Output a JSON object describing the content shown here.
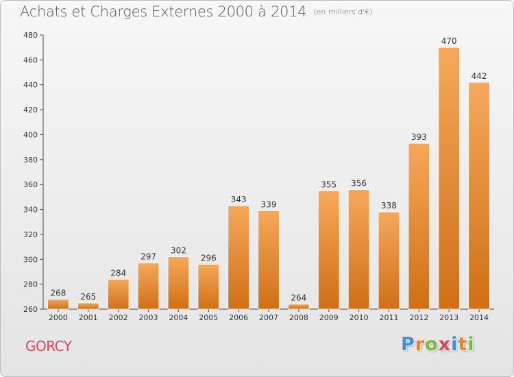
{
  "header": {
    "title": "Achats et Charges Externes 2000 à 2014",
    "unit": "(en milliers d'€)"
  },
  "footer": {
    "city": "GORCY",
    "logo_letters": [
      "P",
      "r",
      "o",
      "x",
      "i",
      "t",
      "i"
    ],
    "logo_colors": [
      "#3d8fd6",
      "#e8822a",
      "#7ab648",
      "#d8455c",
      "#3d8fd6",
      "#e8822a",
      "#7ab648"
    ]
  },
  "chart_data": {
    "type": "bar",
    "categories": [
      "2000",
      "2001",
      "2002",
      "2003",
      "2004",
      "2005",
      "2006",
      "2007",
      "2008",
      "2009",
      "2010",
      "2011",
      "2012",
      "2013",
      "2014"
    ],
    "values": [
      268,
      265,
      284,
      297,
      302,
      296,
      343,
      339,
      264,
      355,
      356,
      338,
      393,
      470,
      442
    ],
    "title": "Achats et Charges Externes 2000 à 2014",
    "subtitle": "(en milliers d'€)",
    "xlabel": "",
    "ylabel": "",
    "ylim": [
      260,
      480
    ],
    "yticks": [
      260,
      280,
      300,
      320,
      340,
      360,
      380,
      400,
      420,
      440,
      460,
      480
    ],
    "grid": false,
    "colors": {
      "bar_top": "#f6a85a",
      "bar_bottom": "#cf6f16",
      "axis": "#444444",
      "text": "#333333"
    }
  }
}
